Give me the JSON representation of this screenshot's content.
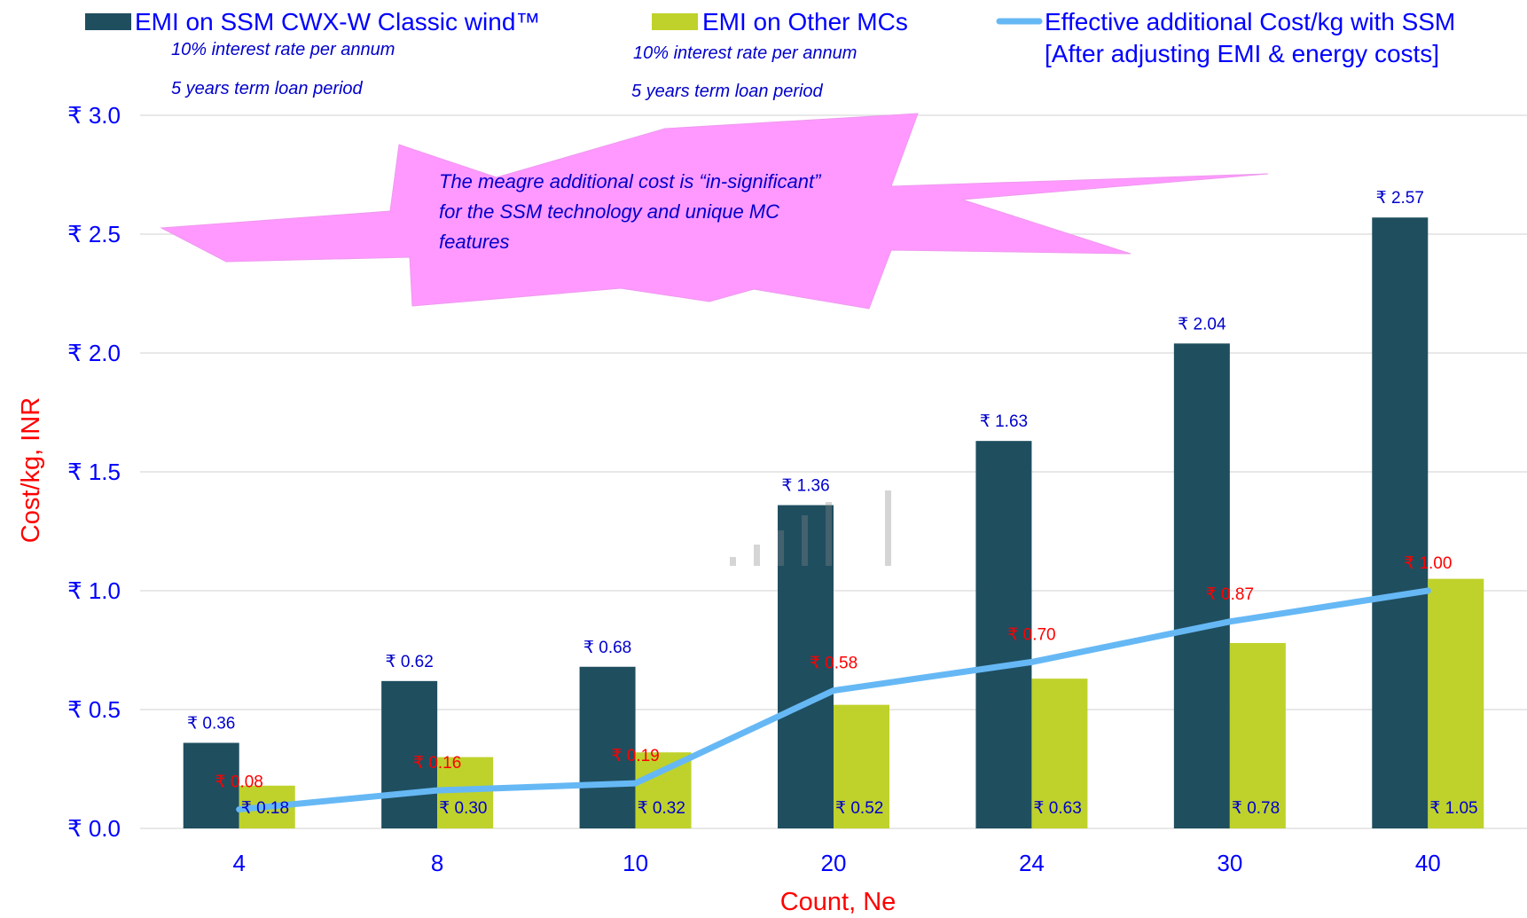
{
  "chart_data": {
    "type": "bar",
    "categories": [
      "4",
      "8",
      "10",
      "20",
      "24",
      "30",
      "40"
    ],
    "series": [
      {
        "name": "EMI on SSM CWX-W Classic wind™",
        "kind": "bar",
        "color": "#1f4e5f",
        "values": [
          0.36,
          0.62,
          0.68,
          1.36,
          1.63,
          2.04,
          2.57
        ],
        "labels": [
          "₹ 0.36",
          "₹ 0.62",
          "₹ 0.68",
          "₹ 1.36",
          "₹ 1.63",
          "₹ 2.04",
          "₹ 2.57"
        ]
      },
      {
        "name": "EMI on Other MCs",
        "kind": "bar",
        "color": "#bfd22b",
        "values": [
          0.18,
          0.3,
          0.32,
          0.52,
          0.63,
          0.78,
          1.05
        ],
        "labels": [
          "₹ 0.18",
          "₹ 0.30",
          "₹ 0.32",
          "₹ 0.52",
          "₹ 0.63",
          "₹ 0.78",
          "₹ 1.05"
        ]
      },
      {
        "name": "Effective additional Cost/kg with SSM",
        "name_line2": "[After adjusting EMI & energy costs]",
        "kind": "line",
        "color": "#66b8f5",
        "values": [
          0.08,
          0.16,
          0.19,
          0.58,
          0.7,
          0.87,
          1.0
        ],
        "labels": [
          "₹ 0.08",
          "₹ 0.16",
          "₹ 0.19",
          "₹ 0.58",
          "₹ 0.70",
          "₹ 0.87",
          "₹ 1.00"
        ]
      }
    ],
    "xlabel": "Count, Ne",
    "ylabel": "Cost/kg, INR",
    "ylim": [
      0,
      3.0
    ],
    "yticks": [
      {
        "value": 0.0,
        "label": "₹ 0.0"
      },
      {
        "value": 0.5,
        "label": "₹ 0.5"
      },
      {
        "value": 1.0,
        "label": "₹ 1.0"
      },
      {
        "value": 1.5,
        "label": "₹ 1.5"
      },
      {
        "value": 2.0,
        "label": "₹ 2.0"
      },
      {
        "value": 2.5,
        "label": "₹ 2.5"
      },
      {
        "value": 3.0,
        "label": "₹ 3.0"
      }
    ],
    "grid": true,
    "legend": "top",
    "legend_notes": {
      "ssm": [
        "10% interest rate per annum",
        "5 years term loan period"
      ],
      "other": [
        "10% interest rate per annum",
        "5 years term loan period"
      ]
    },
    "callout": {
      "lines": [
        "The meagre additional cost is “in-significant”",
        "for the SSM technology and unique MC",
        "features"
      ],
      "color": "#ff99ff"
    }
  }
}
